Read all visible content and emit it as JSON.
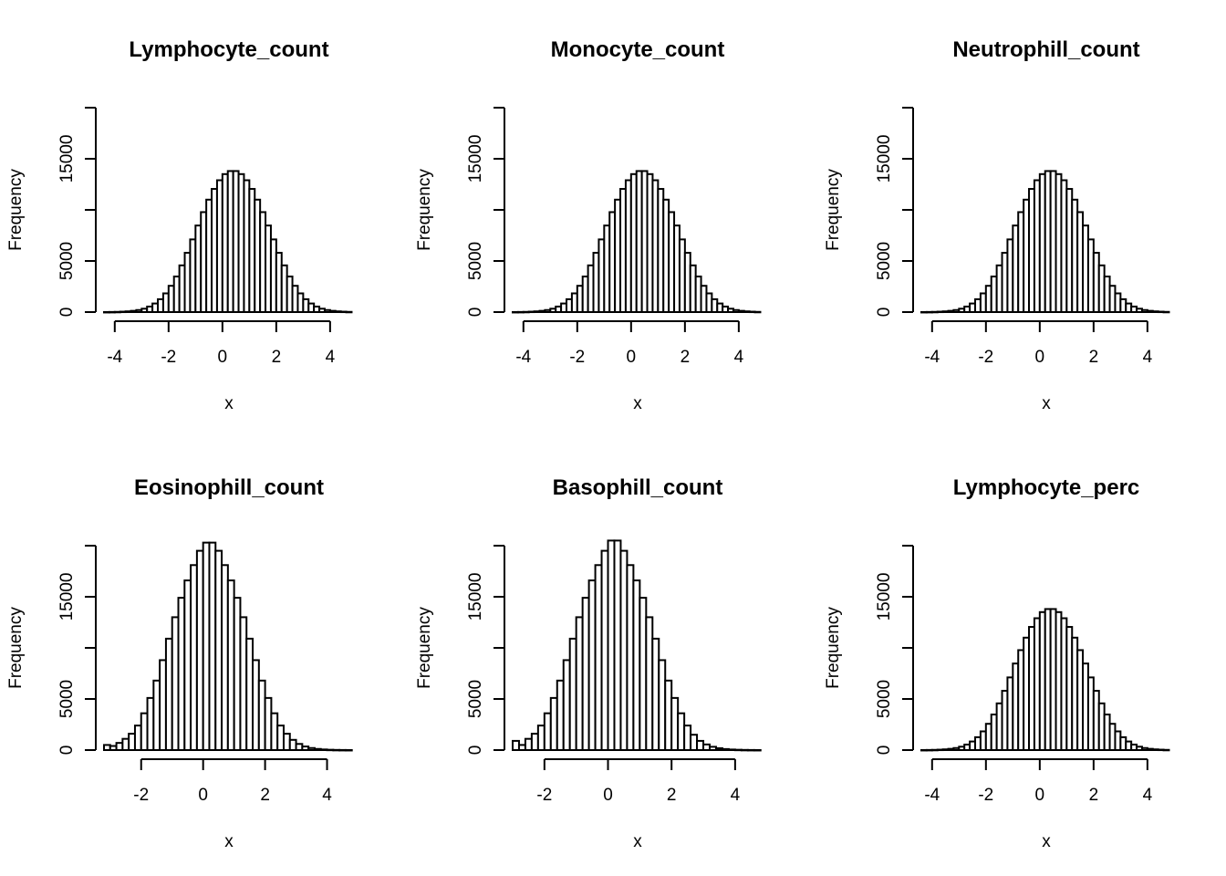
{
  "chart_data": [
    {
      "type": "bar",
      "title": "Lymphocyte_count",
      "xlabel": "x",
      "ylabel": "Frequency",
      "xlim": [
        -4.4,
        4.75
      ],
      "ylim": [
        0,
        21000
      ],
      "xticks": [
        "-4",
        "-2",
        "0",
        "2",
        "4"
      ],
      "yticks": [
        "0",
        "5000",
        "15000"
      ],
      "bin_width": 0.2,
      "bin_start": -4.4,
      "values": [
        5,
        10,
        20,
        40,
        70,
        120,
        200,
        330,
        540,
        840,
        1260,
        1830,
        2570,
        3480,
        4570,
        5800,
        7110,
        8470,
        9780,
        11000,
        12050,
        12900,
        13500,
        13800,
        13800,
        13500,
        12900,
        12050,
        11000,
        9780,
        8470,
        7110,
        5800,
        4570,
        3480,
        2570,
        1830,
        1260,
        840,
        540,
        330,
        200,
        120,
        70,
        40,
        20
      ]
    },
    {
      "type": "bar",
      "title": "Monocyte_count",
      "xlabel": "x",
      "ylabel": "Frequency",
      "xlim": [
        -4.4,
        4.75
      ],
      "ylim": [
        0,
        21000
      ],
      "xticks": [
        "-4",
        "-2",
        "0",
        "2",
        "4"
      ],
      "yticks": [
        "0",
        "5000",
        "15000"
      ],
      "bin_width": 0.2,
      "bin_start": -4.4,
      "values": [
        5,
        10,
        20,
        40,
        70,
        120,
        200,
        330,
        540,
        840,
        1260,
        1830,
        2570,
        3480,
        4570,
        5800,
        7110,
        8470,
        9780,
        11000,
        12050,
        12900,
        13500,
        13800,
        13800,
        13500,
        12900,
        12050,
        11000,
        9780,
        8470,
        7110,
        5800,
        4570,
        3480,
        2570,
        1830,
        1260,
        840,
        540,
        330,
        200,
        120,
        70,
        40,
        20
      ]
    },
    {
      "type": "bar",
      "title": "Neutrophill_count",
      "xlabel": "x",
      "ylabel": "Frequency",
      "xlim": [
        -4.4,
        4.75
      ],
      "ylim": [
        0,
        21000
      ],
      "xticks": [
        "-4",
        "-2",
        "0",
        "2",
        "4"
      ],
      "yticks": [
        "0",
        "5000",
        "15000"
      ],
      "bin_width": 0.2,
      "bin_start": -4.4,
      "values": [
        5,
        10,
        20,
        40,
        70,
        120,
        200,
        330,
        540,
        840,
        1260,
        1830,
        2570,
        3480,
        4570,
        5800,
        7110,
        8470,
        9780,
        11000,
        12050,
        12900,
        13500,
        13800,
        13800,
        13500,
        12900,
        12050,
        11000,
        9780,
        8470,
        7110,
        5800,
        4570,
        3480,
        2570,
        1830,
        1260,
        840,
        540,
        330,
        200,
        120,
        70,
        40,
        20
      ]
    },
    {
      "type": "bar",
      "title": "Eosinophill_count",
      "xlabel": "x",
      "ylabel": "Frequency",
      "xlim": [
        -3.2,
        4.75
      ],
      "ylim": [
        0,
        21000
      ],
      "xticks": [
        "-2",
        "0",
        "2",
        "4"
      ],
      "yticks": [
        "0",
        "5000",
        "15000"
      ],
      "bin_width": 0.2,
      "bin_start": -3.2,
      "values": [
        500,
        400,
        700,
        1100,
        1600,
        2400,
        3600,
        5100,
        6800,
        8800,
        10900,
        13000,
        14900,
        16600,
        18100,
        19500,
        20300,
        20300,
        19500,
        18100,
        16600,
        14900,
        13000,
        10900,
        8800,
        6800,
        5100,
        3600,
        2400,
        1600,
        1000,
        600,
        350,
        200,
        110,
        60,
        30,
        15,
        8,
        4
      ]
    },
    {
      "type": "bar",
      "title": "Basophill_count",
      "xlabel": "x",
      "ylabel": "Frequency",
      "xlim": [
        -3.0,
        4.75
      ],
      "ylim": [
        0,
        21000
      ],
      "xticks": [
        "-2",
        "0",
        "2",
        "4"
      ],
      "yticks": [
        "0",
        "5000",
        "15000"
      ],
      "bin_width": 0.2,
      "bin_start": -3.0,
      "values": [
        900,
        500,
        1100,
        1600,
        2400,
        3600,
        5100,
        6800,
        8800,
        10900,
        13000,
        14900,
        16600,
        18100,
        19500,
        20500,
        20500,
        19500,
        18100,
        16600,
        14900,
        13000,
        10900,
        8800,
        6800,
        5100,
        3600,
        2400,
        1500,
        900,
        550,
        320,
        180,
        100,
        55,
        30,
        15,
        8,
        4
      ]
    },
    {
      "type": "bar",
      "title": "Lymphocyte_perc",
      "xlabel": "x",
      "ylabel": "Frequency",
      "xlim": [
        -4.4,
        4.75
      ],
      "ylim": [
        0,
        21000
      ],
      "xticks": [
        "-4",
        "-2",
        "0",
        "2",
        "4"
      ],
      "yticks": [
        "0",
        "5000",
        "15000"
      ],
      "bin_width": 0.2,
      "bin_start": -4.4,
      "values": [
        5,
        10,
        20,
        40,
        70,
        120,
        200,
        330,
        540,
        840,
        1260,
        1830,
        2570,
        3480,
        4570,
        5800,
        7110,
        8470,
        9780,
        11000,
        12050,
        12900,
        13500,
        13800,
        13800,
        13500,
        12900,
        12050,
        11000,
        9780,
        8470,
        7110,
        5800,
        4570,
        3480,
        2570,
        1830,
        1260,
        840,
        540,
        330,
        200,
        120,
        70,
        40,
        20
      ]
    }
  ]
}
